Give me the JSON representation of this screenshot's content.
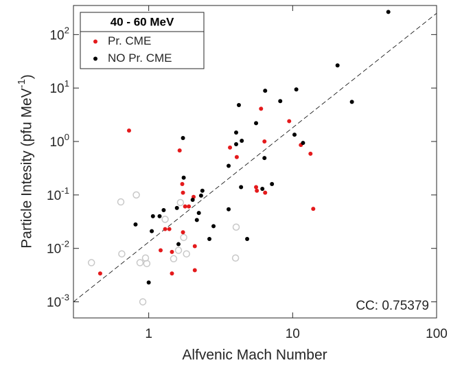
{
  "chart_data": {
    "type": "scatter",
    "xlabel": "Alfvenic Mach Number",
    "ylabel": "Particle Intesity (pfu MeV^-1)",
    "xscale": "log",
    "yscale": "log",
    "xlim": [
      0.3,
      100
    ],
    "ylim": [
      0.0005,
      350
    ],
    "xticks": [
      1,
      10,
      100
    ],
    "yticks": [
      {
        "value": 0.001,
        "label": "10^-3"
      },
      {
        "value": 0.01,
        "label": "10^-2"
      },
      {
        "value": 0.1,
        "label": "10^-1"
      },
      {
        "value": 1,
        "label": "10^0"
      },
      {
        "value": 10,
        "label": "10^1"
      },
      {
        "value": 100,
        "label": "10^2"
      }
    ],
    "legend_title": "40 - 60 MeV",
    "legend_position": "upper left",
    "annotation": "CC: 0.75379",
    "fit_line": {
      "x": [
        0.3,
        100
      ],
      "y": [
        0.001,
        250
      ],
      "color": "#000000"
    },
    "series": [
      {
        "name": "Pr. CME",
        "color": "#e41a1c",
        "marker": "filled",
        "x": [
          0.46,
          0.73,
          1.21,
          1.3,
          1.39,
          1.45,
          1.45,
          1.64,
          1.71,
          1.73,
          1.73,
          1.79,
          1.9,
          2.05,
          2.09,
          2.09,
          3.67,
          4.09,
          5.57,
          5.64,
          6.03,
          6.37,
          6.44,
          9.46,
          11.4,
          13.3,
          13.9
        ],
        "values": [
          0.0034,
          1.6,
          0.0092,
          0.023,
          0.023,
          0.0086,
          0.0034,
          0.68,
          0.16,
          0.11,
          0.02,
          0.061,
          0.061,
          0.092,
          0.011,
          0.0039,
          0.77,
          0.51,
          0.14,
          0.12,
          4.1,
          1.0,
          0.11,
          2.4,
          0.86,
          0.59,
          0.055
        ]
      },
      {
        "name": "NO Pr. CME",
        "color": "#000000",
        "marker": "filled",
        "x": [
          0.81,
          1.0,
          1.05,
          1.07,
          1.19,
          1.27,
          1.57,
          1.61,
          1.73,
          1.75,
          2.02,
          2.16,
          2.23,
          2.31,
          2.36,
          2.64,
          2.82,
          3.59,
          3.59,
          4.05,
          4.05,
          4.23,
          4.38,
          4.43,
          4.83,
          5.57,
          6.16,
          6.37,
          6.44,
          7.18,
          8.2,
          10.3,
          10.6,
          11.8,
          20.5,
          25.8,
          46.2
        ],
        "values": [
          0.028,
          0.0023,
          0.021,
          0.04,
          0.04,
          0.052,
          0.057,
          0.012,
          1.16,
          0.21,
          0.081,
          0.034,
          0.046,
          0.097,
          0.12,
          0.015,
          0.026,
          0.35,
          0.054,
          1.47,
          0.89,
          4.8,
          0.14,
          1.03,
          0.015,
          2.2,
          0.13,
          0.49,
          8.9,
          0.16,
          5.7,
          1.34,
          9.4,
          0.94,
          26.5,
          5.5,
          265
        ]
      },
      {
        "color": "#c8c8c8",
        "marker": "open",
        "x": [
          0.4,
          0.65,
          0.64,
          0.82,
          0.87,
          0.95,
          0.97,
          0.91,
          1.3,
          1.66,
          1.49,
          1.61,
          1.75,
          1.83,
          4.05,
          4.01
        ],
        "values": [
          0.0054,
          0.0079,
          0.074,
          0.1,
          0.0054,
          0.0066,
          0.0052,
          0.001,
          0.035,
          0.072,
          0.0064,
          0.0092,
          0.016,
          0.0079,
          0.025,
          0.0066
        ]
      }
    ]
  }
}
